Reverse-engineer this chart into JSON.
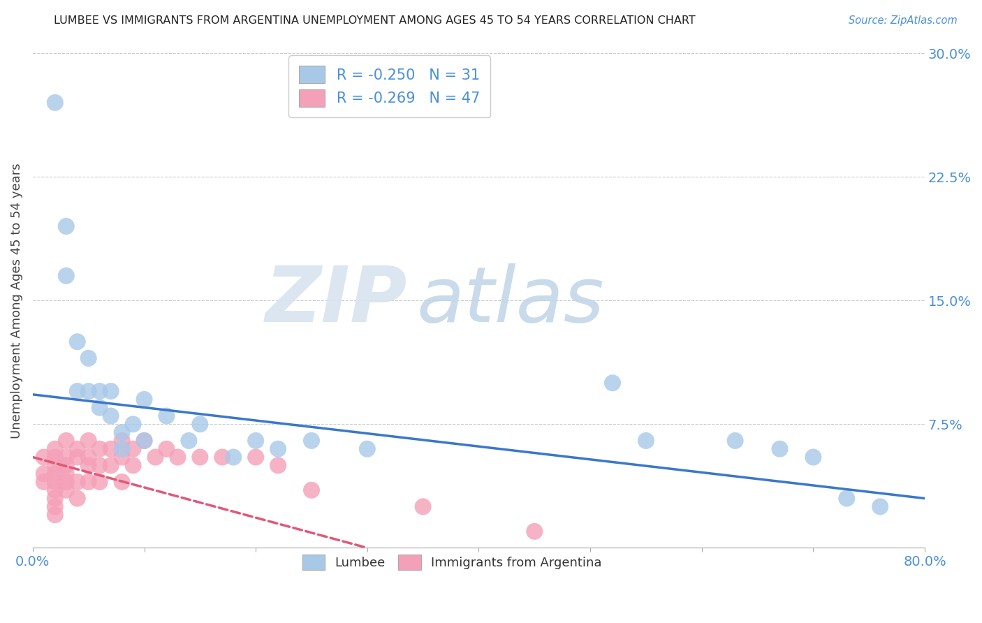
{
  "title": "LUMBEE VS IMMIGRANTS FROM ARGENTINA UNEMPLOYMENT AMONG AGES 45 TO 54 YEARS CORRELATION CHART",
  "source": "Source: ZipAtlas.com",
  "xlabel": "",
  "ylabel": "Unemployment Among Ages 45 to 54 years",
  "xlim": [
    0.0,
    0.8
  ],
  "ylim": [
    0.0,
    0.3
  ],
  "yticks": [
    0.0,
    0.075,
    0.15,
    0.225,
    0.3
  ],
  "ytick_labels": [
    "",
    "7.5%",
    "15.0%",
    "22.5%",
    "30.0%"
  ],
  "xticks": [
    0.0,
    0.1,
    0.2,
    0.3,
    0.4,
    0.5,
    0.6,
    0.7,
    0.8
  ],
  "xtick_labels": [
    "0.0%",
    "",
    "",
    "",
    "",
    "",
    "",
    "",
    "80.0%"
  ],
  "lumbee_R": -0.25,
  "lumbee_N": 31,
  "argentina_R": -0.269,
  "argentina_N": 47,
  "lumbee_color": "#a8c8e8",
  "argentina_color": "#f4a0b8",
  "lumbee_line_color": "#3a78c9",
  "argentina_line_color": "#e05878",
  "legend_blue_label": "Lumbee",
  "legend_pink_label": "Immigrants from Argentina",
  "lumbee_x": [
    0.02,
    0.03,
    0.03,
    0.04,
    0.04,
    0.05,
    0.05,
    0.06,
    0.06,
    0.07,
    0.07,
    0.08,
    0.08,
    0.09,
    0.1,
    0.1,
    0.12,
    0.14,
    0.15,
    0.18,
    0.2,
    0.22,
    0.25,
    0.3,
    0.52,
    0.55,
    0.63,
    0.67,
    0.7,
    0.73,
    0.76
  ],
  "lumbee_y": [
    0.27,
    0.195,
    0.165,
    0.125,
    0.095,
    0.115,
    0.095,
    0.095,
    0.085,
    0.095,
    0.08,
    0.07,
    0.06,
    0.075,
    0.09,
    0.065,
    0.08,
    0.065,
    0.075,
    0.055,
    0.065,
    0.06,
    0.065,
    0.06,
    0.1,
    0.065,
    0.065,
    0.06,
    0.055,
    0.03,
    0.025
  ],
  "argentina_x": [
    0.01,
    0.01,
    0.01,
    0.02,
    0.02,
    0.02,
    0.02,
    0.02,
    0.02,
    0.02,
    0.02,
    0.02,
    0.03,
    0.03,
    0.03,
    0.03,
    0.03,
    0.03,
    0.04,
    0.04,
    0.04,
    0.04,
    0.05,
    0.05,
    0.05,
    0.05,
    0.06,
    0.06,
    0.06,
    0.07,
    0.07,
    0.08,
    0.08,
    0.08,
    0.09,
    0.09,
    0.1,
    0.11,
    0.12,
    0.13,
    0.15,
    0.17,
    0.2,
    0.22,
    0.25,
    0.35,
    0.45
  ],
  "argentina_y": [
    0.055,
    0.045,
    0.04,
    0.06,
    0.055,
    0.05,
    0.045,
    0.04,
    0.035,
    0.03,
    0.025,
    0.02,
    0.065,
    0.055,
    0.05,
    0.045,
    0.04,
    0.035,
    0.06,
    0.055,
    0.04,
    0.03,
    0.065,
    0.055,
    0.05,
    0.04,
    0.06,
    0.05,
    0.04,
    0.06,
    0.05,
    0.065,
    0.055,
    0.04,
    0.06,
    0.05,
    0.065,
    0.055,
    0.06,
    0.055,
    0.055,
    0.055,
    0.055,
    0.05,
    0.035,
    0.025,
    0.01
  ],
  "lumbee_line_x0": 0.0,
  "lumbee_line_y0": 0.093,
  "lumbee_line_x1": 0.8,
  "lumbee_line_y1": 0.03,
  "arg_line_x0": 0.0,
  "arg_line_y0": 0.055,
  "arg_line_x1": 0.3,
  "arg_line_y1": 0.0
}
